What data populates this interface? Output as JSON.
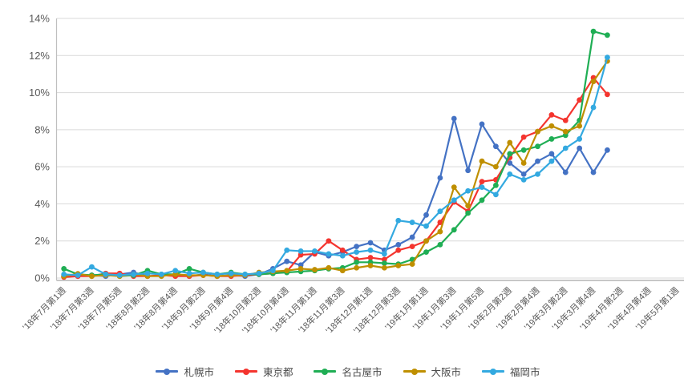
{
  "chart_data": {
    "type": "line",
    "title": "",
    "xlabel": "",
    "ylabel": "",
    "ylim": [
      0,
      14
    ],
    "y_tick_step": 2,
    "y_tick_labels": [
      "0%",
      "2%",
      "4%",
      "6%",
      "8%",
      "10%",
      "12%",
      "14%"
    ],
    "grid": true,
    "legend_position": "bottom",
    "x_slot_count": 45,
    "x_label_slot_step": 2,
    "x_labels_shown": [
      "'18年7月第1週",
      "'18年7月第3週",
      "'18年7月第5週",
      "'18年8月第2週",
      "'18年8月第4週",
      "'18年9月第2週",
      "'18年9月第4週",
      "'18年10月第2週",
      "'18年10月第4週",
      "'18年11月第1週",
      "'18年11月第3週",
      "'18年12月第1週",
      "'18年12月第3週",
      "'19年1月第1週",
      "'19年1月第3週",
      "'19年1月第5週",
      "'19年2月第2週",
      "'19年2月第4週",
      "'19年3月第2週",
      "'19年3月第4週",
      "'19年4月第2週",
      "'19年4月第4週",
      "'19年5月第1週"
    ],
    "series": [
      {
        "id": "sapporo",
        "name": "札幌市",
        "color": "#4472C4",
        "values": [
          0.1,
          0.1,
          0.15,
          0.1,
          0.2,
          0.3,
          0.1,
          0.15,
          0.15,
          0.1,
          0.2,
          0.1,
          0.15,
          0.1,
          0.2,
          0.5,
          0.9,
          0.7,
          1.4,
          1.2,
          1.4,
          1.7,
          1.9,
          1.5,
          1.8,
          2.2,
          3.4,
          5.4,
          8.6,
          5.8,
          8.3,
          7.1,
          6.2,
          5.6,
          6.3,
          6.7,
          5.7,
          7.0,
          5.7,
          6.9
        ]
      },
      {
        "id": "tokyo",
        "name": "東京都",
        "color": "#F4342E",
        "values": [
          0.05,
          0.1,
          0.1,
          0.25,
          0.25,
          0.1,
          0.1,
          0.15,
          0.1,
          0.1,
          0.15,
          0.1,
          0.1,
          0.15,
          0.2,
          0.25,
          0.35,
          1.25,
          1.3,
          2.0,
          1.5,
          1.0,
          1.1,
          1.0,
          1.5,
          1.7,
          2.0,
          3.0,
          4.1,
          3.6,
          5.2,
          5.3,
          6.5,
          7.6,
          7.9,
          8.8,
          8.5,
          9.6,
          10.8,
          9.9
        ]
      },
      {
        "id": "nagoya",
        "name": "名古屋市",
        "color": "#1FAE54",
        "values": [
          0.5,
          0.2,
          0.15,
          0.2,
          0.1,
          0.15,
          0.4,
          0.2,
          0.2,
          0.5,
          0.3,
          0.2,
          0.3,
          0.2,
          0.2,
          0.25,
          0.3,
          0.35,
          0.4,
          0.5,
          0.55,
          0.85,
          0.85,
          0.8,
          0.75,
          1.0,
          1.4,
          1.8,
          2.6,
          3.5,
          4.2,
          5.0,
          6.7,
          6.9,
          7.1,
          7.5,
          7.7,
          8.5,
          13.3,
          13.1
        ]
      },
      {
        "id": "osaka",
        "name": "大阪市",
        "color": "#BF8F00",
        "values": [
          0.1,
          0.23,
          0.1,
          0.15,
          0.1,
          0.2,
          0.1,
          0.1,
          0.2,
          0.15,
          0.15,
          0.1,
          0.15,
          0.15,
          0.3,
          0.35,
          0.4,
          0.5,
          0.45,
          0.55,
          0.4,
          0.55,
          0.67,
          0.55,
          0.67,
          0.75,
          2.0,
          2.5,
          4.9,
          3.9,
          6.3,
          6.0,
          7.3,
          6.2,
          7.9,
          8.2,
          7.9,
          8.2,
          10.6,
          11.7
        ]
      },
      {
        "id": "fukuoka",
        "name": "福岡市",
        "color": "#33A9E0",
        "values": [
          0.2,
          0.15,
          0.6,
          0.2,
          0.15,
          0.2,
          0.25,
          0.2,
          0.4,
          0.25,
          0.3,
          0.2,
          0.25,
          0.2,
          0.25,
          0.4,
          1.5,
          1.45,
          1.45,
          1.3,
          1.2,
          1.4,
          1.5,
          1.3,
          3.1,
          3.0,
          2.8,
          3.6,
          4.2,
          4.7,
          4.9,
          4.5,
          5.6,
          5.3,
          5.6,
          6.3,
          7.0,
          7.5,
          9.2,
          11.9
        ]
      }
    ],
    "style": {
      "grid_color": "#D9D9D9",
      "axis_color": "#BFBFBF",
      "tick_label_color": "#595959"
    }
  }
}
